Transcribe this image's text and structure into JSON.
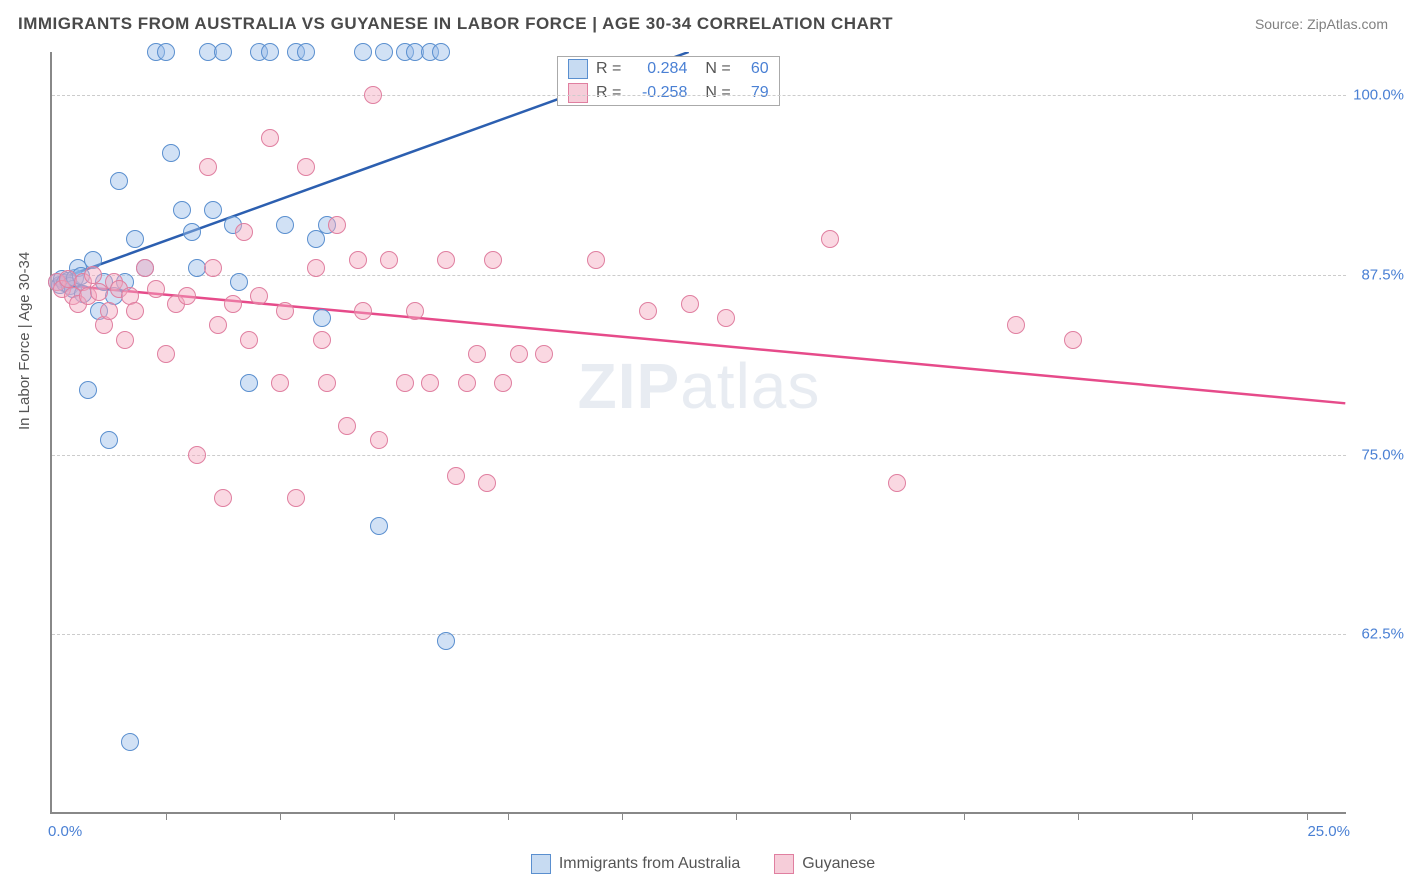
{
  "chart": {
    "type": "scatter",
    "title": "IMMIGRANTS FROM AUSTRALIA VS GUYANESE IN LABOR FORCE | AGE 30-34 CORRELATION CHART",
    "source_label": "Source: ZipAtlas.com",
    "y_axis_label": "In Labor Force | Age 30-34",
    "background_color": "#ffffff",
    "axis_line_color": "#888888",
    "grid_color": "#cccccc",
    "grid_dash": "dashed",
    "tick_label_color": "#4a80d4",
    "axis_label_color": "#555555",
    "title_color": "#4a4a4a",
    "title_fontsize": 17,
    "label_fontsize": 15,
    "tick_fontsize": 15,
    "marker_radius": 9,
    "xlim": [
      0,
      25
    ],
    "ylim": [
      50,
      103
    ],
    "x_ticks": [
      0,
      25
    ],
    "x_tick_labels": [
      "0.0%",
      "25.0%"
    ],
    "x_minor_ticks": [
      2.2,
      4.4,
      6.6,
      8.8,
      11.0,
      13.2,
      15.4,
      17.6,
      19.8,
      22.0,
      24.2
    ],
    "y_ticks": [
      62.5,
      75.0,
      87.5,
      100.0
    ],
    "y_tick_labels": [
      "62.5%",
      "75.0%",
      "87.5%",
      "100.0%"
    ],
    "watermark_text_bold": "ZIP",
    "watermark_text_light": "atlas",
    "watermark_color": "rgba(100,130,170,0.15)",
    "watermark_fontsize": 64,
    "series": [
      {
        "name": "Immigrants from Australia",
        "fill_color": "rgba(153,189,232,0.45)",
        "stroke_color": "#5a8fcf",
        "swatch_fill": "#c7dbf2",
        "swatch_border": "#5a8fcf",
        "trend_color": "#2c5fb0",
        "trend_width": 2.5,
        "trend_start": [
          0,
          87
        ],
        "trend_end": [
          12.3,
          103
        ],
        "R": "0.284",
        "N": "60",
        "points": [
          [
            0.1,
            87
          ],
          [
            0.15,
            86.8
          ],
          [
            0.2,
            87.2
          ],
          [
            0.25,
            86.9
          ],
          [
            0.3,
            87.1
          ],
          [
            0.35,
            86.7
          ],
          [
            0.4,
            86.5
          ],
          [
            0.45,
            87.3
          ],
          [
            0.5,
            88
          ],
          [
            0.55,
            87.4
          ],
          [
            0.6,
            86.2
          ],
          [
            0.7,
            79.5
          ],
          [
            0.8,
            88.5
          ],
          [
            0.9,
            85
          ],
          [
            1.0,
            87
          ],
          [
            1.1,
            76
          ],
          [
            1.2,
            86
          ],
          [
            1.3,
            94
          ],
          [
            1.4,
            87
          ],
          [
            1.5,
            55
          ],
          [
            1.6,
            90
          ],
          [
            1.8,
            88
          ],
          [
            2.0,
            103
          ],
          [
            2.2,
            103
          ],
          [
            2.3,
            96
          ],
          [
            2.5,
            92
          ],
          [
            2.7,
            90.5
          ],
          [
            2.8,
            88
          ],
          [
            3.0,
            103
          ],
          [
            3.1,
            92
          ],
          [
            3.3,
            103
          ],
          [
            3.5,
            91
          ],
          [
            3.6,
            87
          ],
          [
            3.8,
            80
          ],
          [
            4.0,
            103
          ],
          [
            4.2,
            103
          ],
          [
            4.5,
            91
          ],
          [
            4.7,
            103
          ],
          [
            4.9,
            103
          ],
          [
            5.1,
            90
          ],
          [
            5.2,
            84.5
          ],
          [
            5.3,
            91
          ],
          [
            6.0,
            103
          ],
          [
            6.3,
            70
          ],
          [
            6.4,
            103
          ],
          [
            6.8,
            103
          ],
          [
            7.0,
            103
          ],
          [
            7.3,
            103
          ],
          [
            7.5,
            103
          ],
          [
            7.6,
            62
          ]
        ]
      },
      {
        "name": "Guyanese",
        "fill_color": "rgba(244,168,191,0.45)",
        "stroke_color": "#e07fa0",
        "swatch_fill": "#f6cdd9",
        "swatch_border": "#e07fa0",
        "trend_color": "#e64b8a",
        "trend_width": 2.5,
        "trend_start": [
          0,
          86.8
        ],
        "trend_end": [
          25,
          78.5
        ],
        "R": "-0.258",
        "N": "79",
        "points": [
          [
            0.1,
            87
          ],
          [
            0.2,
            86.5
          ],
          [
            0.3,
            87.2
          ],
          [
            0.4,
            86
          ],
          [
            0.5,
            85.5
          ],
          [
            0.6,
            87
          ],
          [
            0.7,
            86
          ],
          [
            0.8,
            87.5
          ],
          [
            0.9,
            86.3
          ],
          [
            1.0,
            84
          ],
          [
            1.1,
            85
          ],
          [
            1.2,
            87
          ],
          [
            1.3,
            86.5
          ],
          [
            1.4,
            83
          ],
          [
            1.5,
            86
          ],
          [
            1.6,
            85
          ],
          [
            1.8,
            88
          ],
          [
            2.0,
            86.5
          ],
          [
            2.2,
            82
          ],
          [
            2.4,
            85.5
          ],
          [
            2.6,
            86
          ],
          [
            2.8,
            75
          ],
          [
            3.0,
            95
          ],
          [
            3.1,
            88
          ],
          [
            3.2,
            84
          ],
          [
            3.3,
            72
          ],
          [
            3.5,
            85.5
          ],
          [
            3.7,
            90.5
          ],
          [
            3.8,
            83
          ],
          [
            4.0,
            86
          ],
          [
            4.2,
            97
          ],
          [
            4.4,
            80
          ],
          [
            4.5,
            85
          ],
          [
            4.7,
            72
          ],
          [
            4.9,
            95
          ],
          [
            5.1,
            88
          ],
          [
            5.2,
            83
          ],
          [
            5.3,
            80
          ],
          [
            5.5,
            91
          ],
          [
            5.7,
            77
          ],
          [
            5.9,
            88.5
          ],
          [
            6.0,
            85
          ],
          [
            6.2,
            100
          ],
          [
            6.3,
            76
          ],
          [
            6.5,
            88.5
          ],
          [
            6.8,
            80
          ],
          [
            7.0,
            85
          ],
          [
            7.3,
            80
          ],
          [
            7.6,
            88.5
          ],
          [
            7.8,
            73.5
          ],
          [
            8.0,
            80
          ],
          [
            8.2,
            82
          ],
          [
            8.4,
            73
          ],
          [
            8.5,
            88.5
          ],
          [
            8.7,
            80
          ],
          [
            9.0,
            82
          ],
          [
            9.5,
            82
          ],
          [
            10.5,
            88.5
          ],
          [
            11.5,
            85
          ],
          [
            12.3,
            85.5
          ],
          [
            13.0,
            84.5
          ],
          [
            15.0,
            90
          ],
          [
            16.3,
            73
          ],
          [
            18.6,
            84
          ],
          [
            19.7,
            83
          ]
        ]
      }
    ],
    "stats_box": {
      "R_label": "R =",
      "N_label": "N ="
    },
    "bottom_legend": {
      "items": [
        "Immigrants from Australia",
        "Guyanese"
      ]
    }
  }
}
